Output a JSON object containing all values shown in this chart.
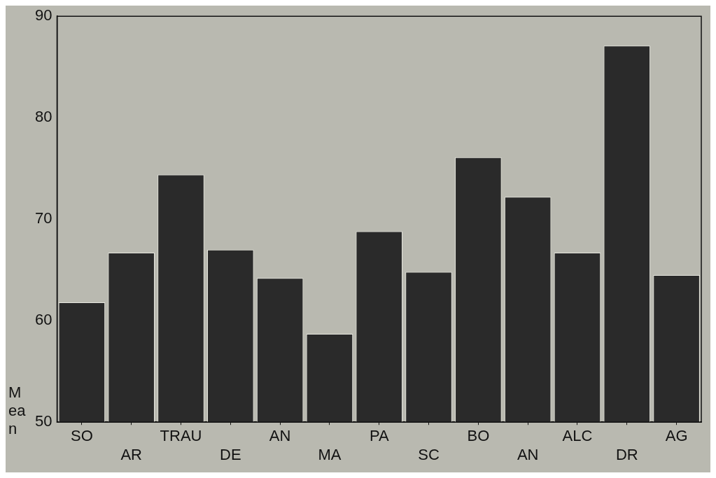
{
  "chart_data": {
    "type": "bar",
    "ylabel": "Mean",
    "categories": [
      "SO",
      "AR",
      "TRAU",
      "DE",
      "AN",
      "MA",
      "PA",
      "SC",
      "BO",
      "AN",
      "ALC",
      "DR",
      "AG"
    ],
    "values": [
      61.8,
      66.7,
      74.4,
      67.0,
      64.2,
      58.7,
      68.8,
      64.8,
      76.1,
      72.2,
      66.7,
      87.1,
      64.5
    ],
    "color": "#2a2a2a",
    "ylim": [
      50,
      90
    ],
    "yticks": [
      50,
      60,
      70,
      80,
      90
    ],
    "grid": false,
    "legend": false
  }
}
